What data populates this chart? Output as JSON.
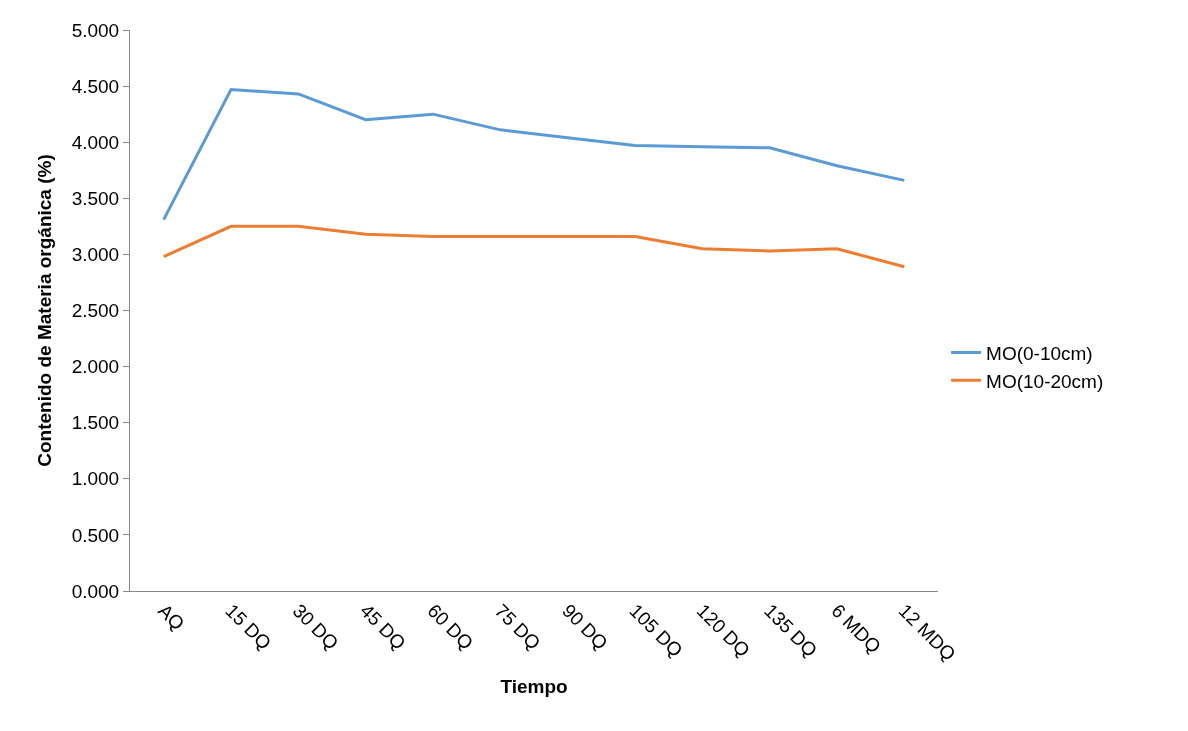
{
  "chart_data": {
    "type": "line",
    "xlabel": "Tiempo",
    "ylabel": "Contenido de Materia orgánica (%)",
    "categories": [
      "AQ",
      "15 DQ",
      "30 DQ",
      "45 DQ",
      "60 DQ",
      "75 DQ",
      "90 DQ",
      "105 DQ",
      "120 DQ",
      "135 DQ",
      "6 MDQ",
      "12 MDQ"
    ],
    "series": [
      {
        "name": "MO(0-10cm)",
        "color": "#5b9bd5",
        "values": [
          3.31,
          4.47,
          4.43,
          4.2,
          4.25,
          4.11,
          4.04,
          3.97,
          3.96,
          3.95,
          3.79,
          3.66
        ]
      },
      {
        "name": "MO(10-20cm)",
        "color": "#ed7d31",
        "values": [
          2.98,
          3.25,
          3.25,
          3.18,
          3.16,
          3.16,
          3.16,
          3.16,
          3.05,
          3.03,
          3.05,
          2.89
        ]
      }
    ],
    "ylim": [
      0,
      5
    ],
    "yticks": [
      {
        "value": 0,
        "label": "0.000"
      },
      {
        "value": 0.5,
        "label": "0.500"
      },
      {
        "value": 1,
        "label": "1.000"
      },
      {
        "value": 1.5,
        "label": "1.500"
      },
      {
        "value": 2,
        "label": "2.000"
      },
      {
        "value": 2.5,
        "label": "2.500"
      },
      {
        "value": 3,
        "label": "3.000"
      },
      {
        "value": 3.5,
        "label": "3.500"
      },
      {
        "value": 4,
        "label": "4.000"
      },
      {
        "value": 4.5,
        "label": "4.500"
      },
      {
        "value": 5,
        "label": "5.000"
      }
    ],
    "legend": "right",
    "marker": "none",
    "line_style": "solid"
  }
}
